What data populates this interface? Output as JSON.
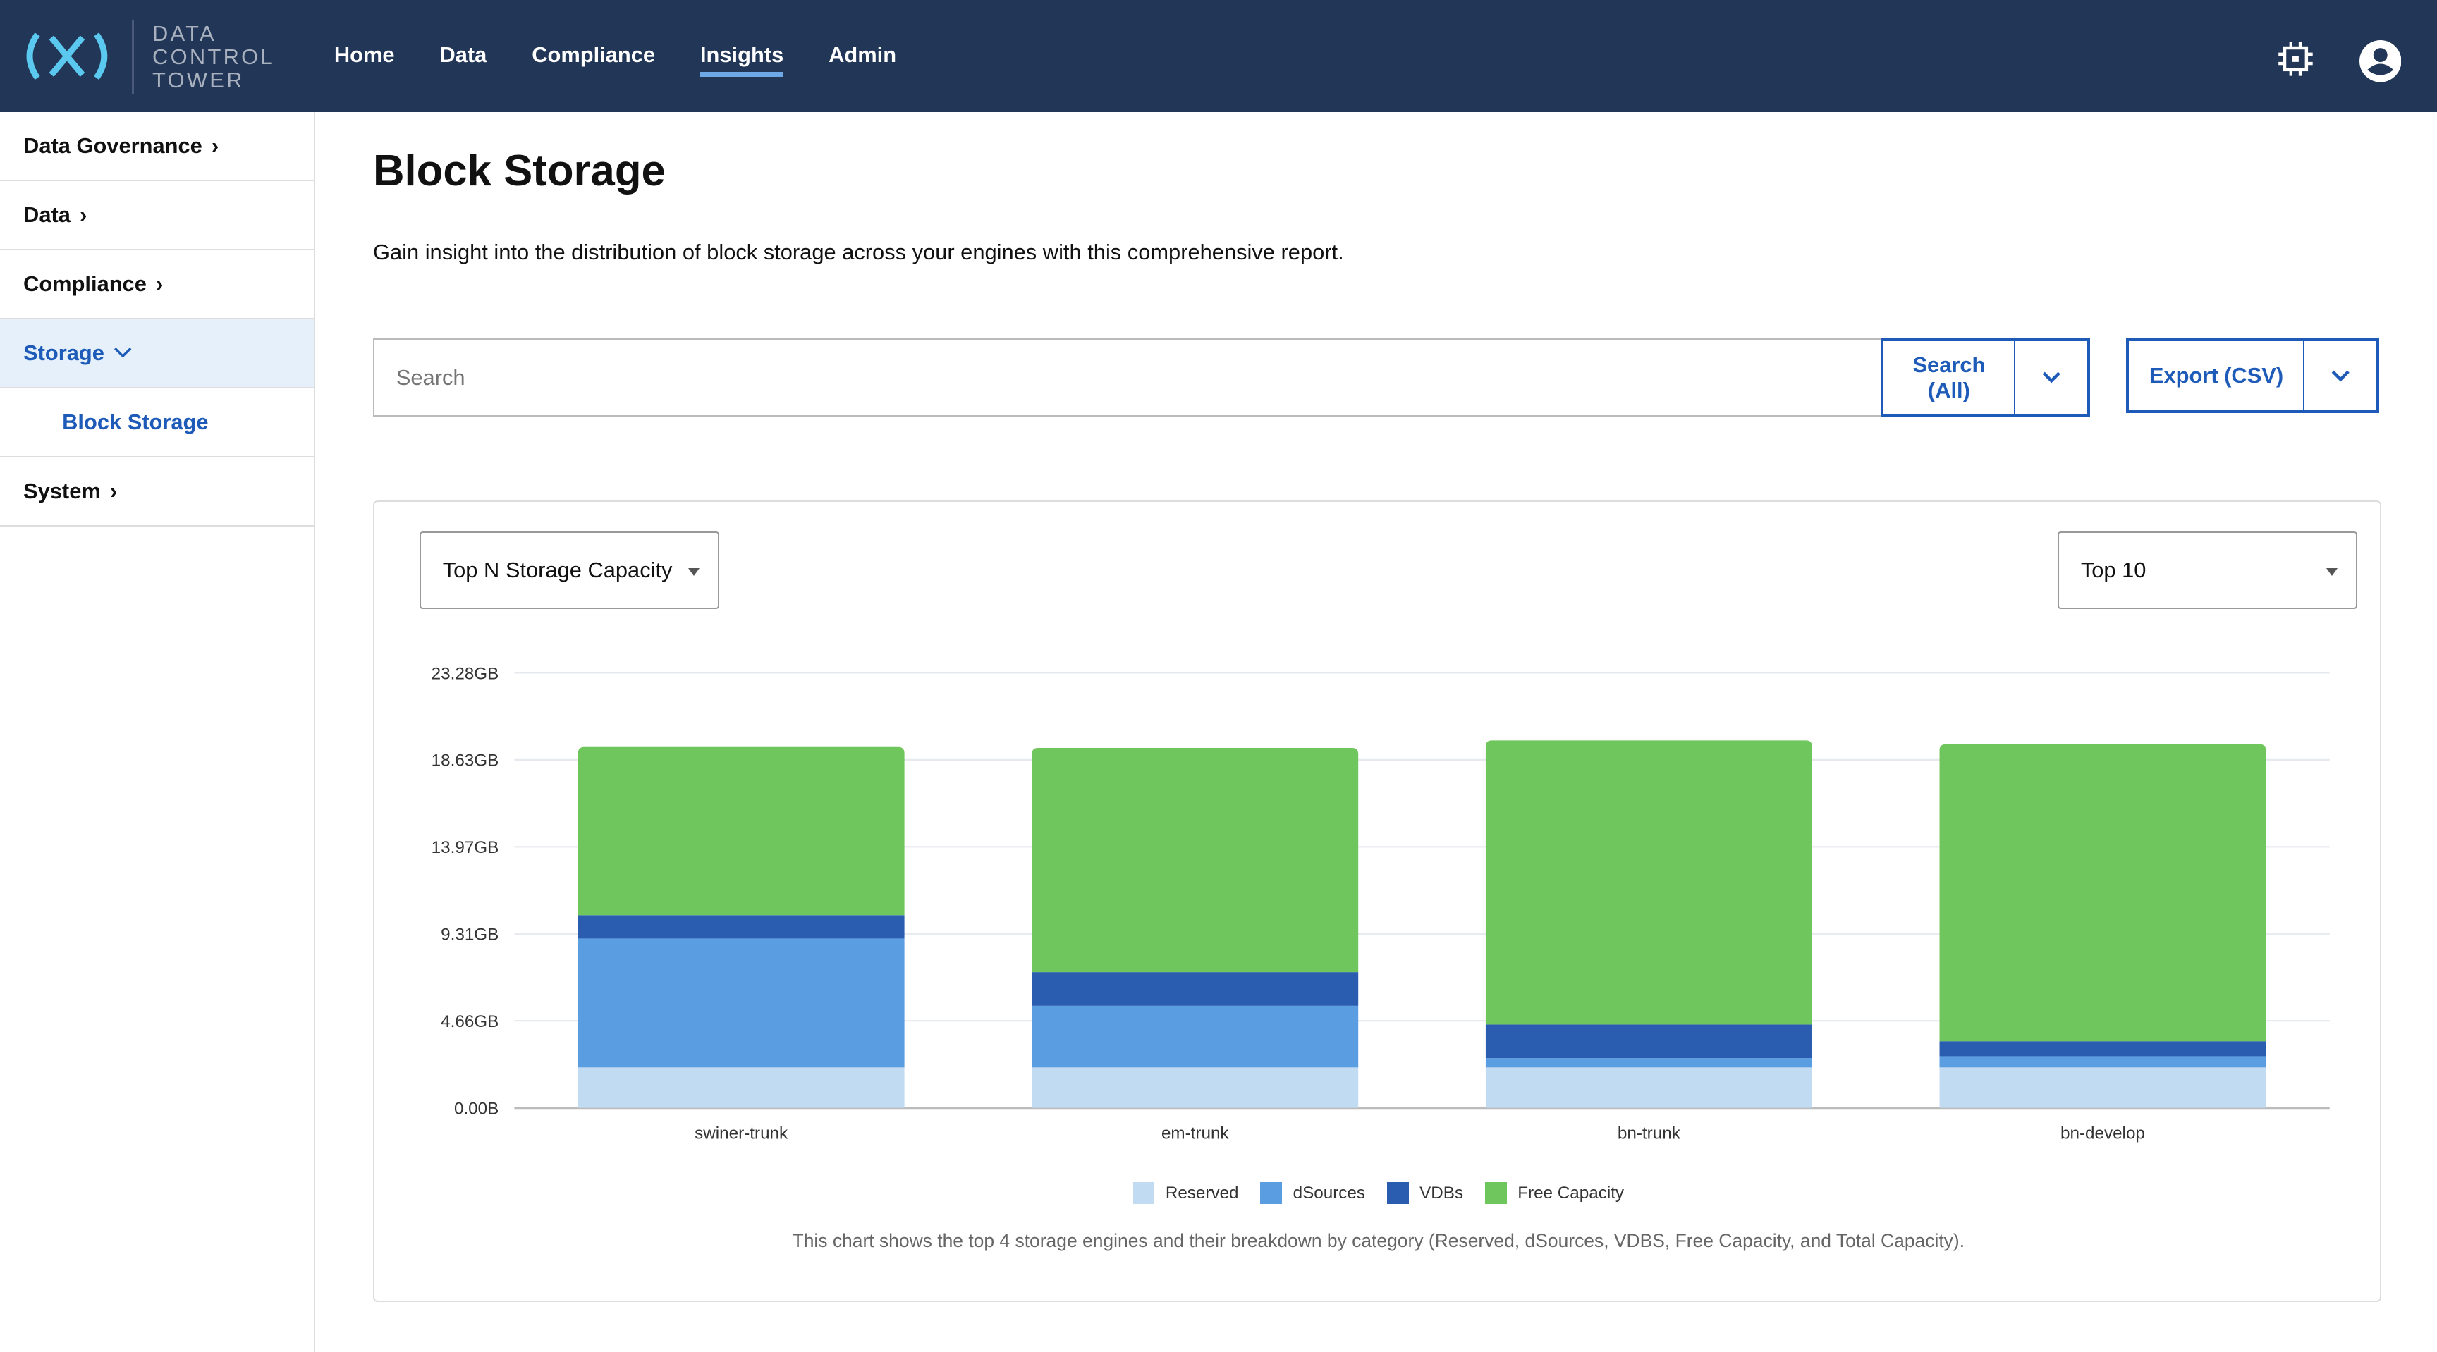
{
  "header": {
    "logo_text": [
      "DATA",
      "CONTROL",
      "TOWER"
    ],
    "nav": [
      {
        "label": "Home"
      },
      {
        "label": "Data"
      },
      {
        "label": "Compliance"
      },
      {
        "label": "Insights",
        "active": true
      },
      {
        "label": "Admin"
      }
    ],
    "icons": [
      "chip-icon",
      "account-icon"
    ]
  },
  "sidebar": {
    "items": [
      {
        "label": "Data Governance"
      },
      {
        "label": "Data"
      },
      {
        "label": "Compliance"
      },
      {
        "label": "Storage",
        "open": true
      },
      {
        "label": "Block Storage",
        "sub": true
      },
      {
        "label": "System"
      }
    ]
  },
  "main": {
    "title": "Block Storage",
    "description": "Gain insight into the distribution of block storage across your engines with this comprehensive report.",
    "search_placeholder": "Search",
    "search_button": "Search (All)",
    "export_button": "Export (CSV)",
    "chart_select": "Top N Storage Capacity",
    "top_select": "Top 10",
    "note": "This chart shows the top 4 storage engines and their breakdown by category (Reserved, dSources, VDBS, Free Capacity, and Total Capacity)."
  },
  "colors": {
    "header": "#223657",
    "accent": "#1e5bb8",
    "Reserved": "#c1dbf3",
    "dSources": "#5b9de1",
    "VDBs": "#2a5db0",
    "Free Capacity": "#6fc65c"
  },
  "chart_data": {
    "type": "bar",
    "stacked": true,
    "categories": [
      "swiner-trunk",
      "em-trunk",
      "bn-trunk",
      "bn-develop"
    ],
    "yticks": [
      "0.00B",
      "4.66GB",
      "9.31GB",
      "13.97GB",
      "18.63GB",
      "23.28GB"
    ],
    "ylim": [
      0,
      23.28
    ],
    "unit": "GB",
    "grid": true,
    "legend": "bottom",
    "series": [
      {
        "name": "Reserved",
        "values": [
          2.16,
          2.16,
          2.16,
          2.16
        ]
      },
      {
        "name": "dSources",
        "values": [
          6.9,
          3.3,
          0.5,
          0.6
        ]
      },
      {
        "name": "VDBs",
        "values": [
          1.25,
          1.8,
          1.8,
          0.8
        ]
      },
      {
        "name": "Free Capacity",
        "values": [
          9.0,
          12.0,
          15.2,
          15.9
        ]
      }
    ]
  }
}
